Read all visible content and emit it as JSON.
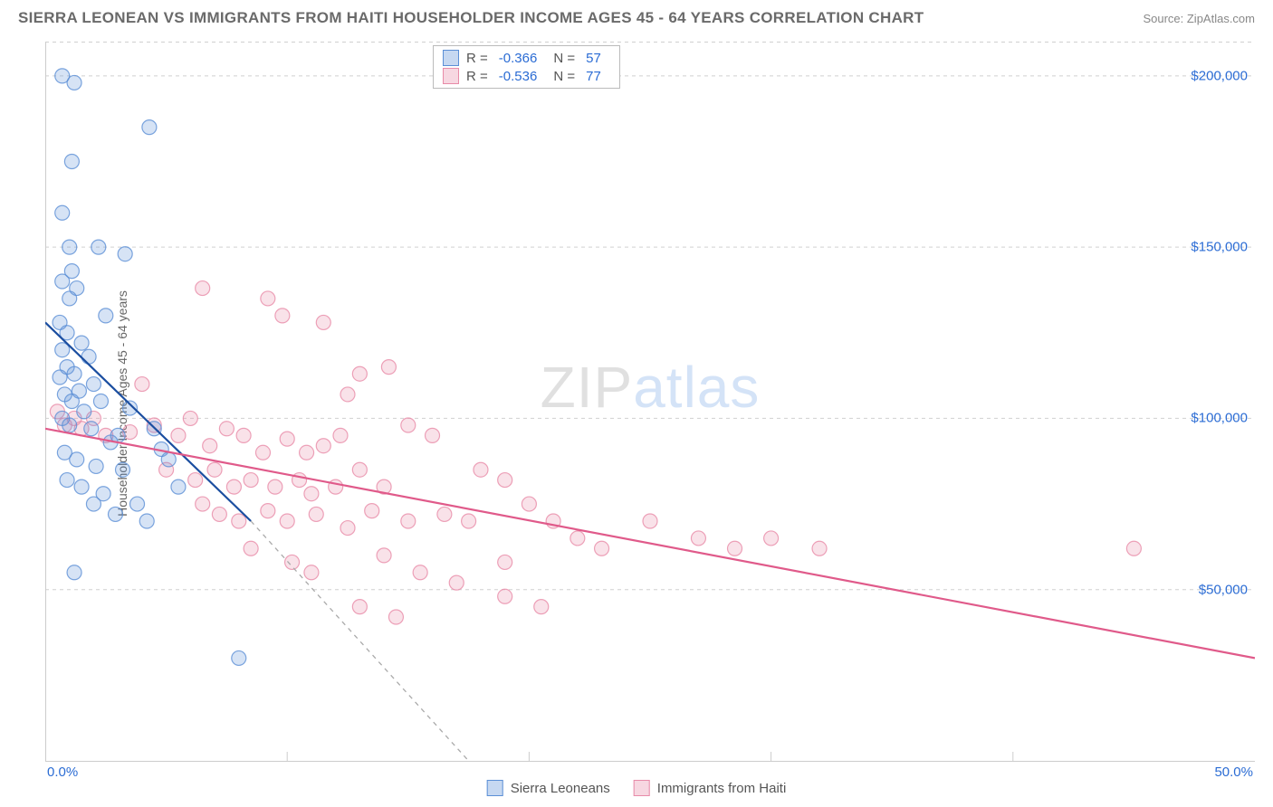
{
  "title": "SIERRA LEONEAN VS IMMIGRANTS FROM HAITI HOUSEHOLDER INCOME AGES 45 - 64 YEARS CORRELATION CHART",
  "source_label": "Source: ",
  "source_name": "ZipAtlas.com",
  "watermark_a": "ZIP",
  "watermark_b": "atlas",
  "ylabel": "Householder Income Ages 45 - 64 years",
  "chart": {
    "type": "scatter",
    "xlim": [
      0,
      50
    ],
    "ylim": [
      0,
      210000
    ],
    "x_tick_values": [
      0,
      10,
      20,
      30,
      40,
      50
    ],
    "y_grid_values": [
      50000,
      100000,
      150000,
      200000
    ],
    "y_tick_labels": [
      "$50,000",
      "$100,000",
      "$150,000",
      "$200,000"
    ],
    "x_start_label": "0.0%",
    "x_end_label": "50.0%",
    "background_color": "#ffffff",
    "grid_color": "#d0d0d0",
    "axis_color": "#cccccc",
    "marker_radius": 8,
    "marker_fill_opacity": 0.25,
    "marker_stroke_opacity": 0.8,
    "line_width": 2.2,
    "series_blue": {
      "label": "Sierra Leoneans",
      "color": "#5b8fd6",
      "line_color": "#1b4ea0",
      "R": "-0.366",
      "N": "57",
      "trend": {
        "x1": 0,
        "y1": 128000,
        "x2": 8.5,
        "y2": 70000
      },
      "trend_ext": {
        "x1": 8.5,
        "y1": 70000,
        "x2": 17.5,
        "y2": 0
      },
      "points": [
        [
          0.7,
          200000
        ],
        [
          1.2,
          198000
        ],
        [
          4.3,
          185000
        ],
        [
          1.1,
          175000
        ],
        [
          0.7,
          160000
        ],
        [
          1.0,
          150000
        ],
        [
          2.2,
          150000
        ],
        [
          3.3,
          148000
        ],
        [
          1.1,
          143000
        ],
        [
          0.7,
          140000
        ],
        [
          1.3,
          138000
        ],
        [
          1.0,
          135000
        ],
        [
          2.5,
          130000
        ],
        [
          0.6,
          128000
        ],
        [
          0.9,
          125000
        ],
        [
          1.5,
          122000
        ],
        [
          0.7,
          120000
        ],
        [
          1.8,
          118000
        ],
        [
          0.9,
          115000
        ],
        [
          1.2,
          113000
        ],
        [
          0.6,
          112000
        ],
        [
          2.0,
          110000
        ],
        [
          1.4,
          108000
        ],
        [
          0.8,
          107000
        ],
        [
          1.1,
          105000
        ],
        [
          2.3,
          105000
        ],
        [
          3.5,
          103000
        ],
        [
          1.6,
          102000
        ],
        [
          0.7,
          100000
        ],
        [
          1.0,
          98000
        ],
        [
          1.9,
          97000
        ],
        [
          3.0,
          95000
        ],
        [
          4.5,
          97000
        ],
        [
          2.7,
          93000
        ],
        [
          0.8,
          90000
        ],
        [
          1.3,
          88000
        ],
        [
          2.1,
          86000
        ],
        [
          4.8,
          91000
        ],
        [
          3.2,
          85000
        ],
        [
          5.1,
          88000
        ],
        [
          0.9,
          82000
        ],
        [
          1.5,
          80000
        ],
        [
          2.4,
          78000
        ],
        [
          5.5,
          80000
        ],
        [
          2.0,
          75000
        ],
        [
          3.8,
          75000
        ],
        [
          2.9,
          72000
        ],
        [
          4.2,
          70000
        ],
        [
          1.2,
          55000
        ],
        [
          8.0,
          30000
        ]
      ]
    },
    "series_pink": {
      "label": "Immigrants from Haiti",
      "color": "#e88ba8",
      "line_color": "#e05a8a",
      "R": "-0.536",
      "N": "77",
      "trend": {
        "x1": 0,
        "y1": 97000,
        "x2": 50,
        "y2": 30000
      },
      "points": [
        [
          6.5,
          138000
        ],
        [
          9.2,
          135000
        ],
        [
          9.8,
          130000
        ],
        [
          11.5,
          128000
        ],
        [
          4.0,
          110000
        ],
        [
          13.0,
          113000
        ],
        [
          14.2,
          115000
        ],
        [
          12.5,
          107000
        ],
        [
          0.5,
          102000
        ],
        [
          1.2,
          100000
        ],
        [
          2.0,
          100000
        ],
        [
          0.8,
          98000
        ],
        [
          1.5,
          97000
        ],
        [
          2.5,
          95000
        ],
        [
          3.5,
          96000
        ],
        [
          4.5,
          98000
        ],
        [
          5.5,
          95000
        ],
        [
          6.0,
          100000
        ],
        [
          6.8,
          92000
        ],
        [
          7.5,
          97000
        ],
        [
          8.2,
          95000
        ],
        [
          9.0,
          90000
        ],
        [
          10.0,
          94000
        ],
        [
          10.8,
          90000
        ],
        [
          11.5,
          92000
        ],
        [
          12.2,
          95000
        ],
        [
          15.0,
          98000
        ],
        [
          16.0,
          95000
        ],
        [
          5.0,
          85000
        ],
        [
          6.2,
          82000
        ],
        [
          7.0,
          85000
        ],
        [
          7.8,
          80000
        ],
        [
          8.5,
          82000
        ],
        [
          9.5,
          80000
        ],
        [
          10.5,
          82000
        ],
        [
          11.0,
          78000
        ],
        [
          12.0,
          80000
        ],
        [
          13.0,
          85000
        ],
        [
          14.0,
          80000
        ],
        [
          18.0,
          85000
        ],
        [
          19.0,
          82000
        ],
        [
          6.5,
          75000
        ],
        [
          7.2,
          72000
        ],
        [
          8.0,
          70000
        ],
        [
          9.2,
          73000
        ],
        [
          10.0,
          70000
        ],
        [
          11.2,
          72000
        ],
        [
          12.5,
          68000
        ],
        [
          13.5,
          73000
        ],
        [
          15.0,
          70000
        ],
        [
          16.5,
          72000
        ],
        [
          17.5,
          70000
        ],
        [
          20.0,
          75000
        ],
        [
          21.0,
          70000
        ],
        [
          8.5,
          62000
        ],
        [
          10.2,
          58000
        ],
        [
          11.0,
          55000
        ],
        [
          14.0,
          60000
        ],
        [
          15.5,
          55000
        ],
        [
          17.0,
          52000
        ],
        [
          19.0,
          58000
        ],
        [
          22.0,
          65000
        ],
        [
          23.0,
          62000
        ],
        [
          25.0,
          70000
        ],
        [
          27.0,
          65000
        ],
        [
          28.5,
          62000
        ],
        [
          30.0,
          65000
        ],
        [
          32.0,
          62000
        ],
        [
          13.0,
          45000
        ],
        [
          14.5,
          42000
        ],
        [
          19.0,
          48000
        ],
        [
          20.5,
          45000
        ],
        [
          45.0,
          62000
        ]
      ]
    }
  },
  "legend_top": {
    "position_left_pct": 34,
    "R_label": "R =",
    "N_label": "N ="
  }
}
